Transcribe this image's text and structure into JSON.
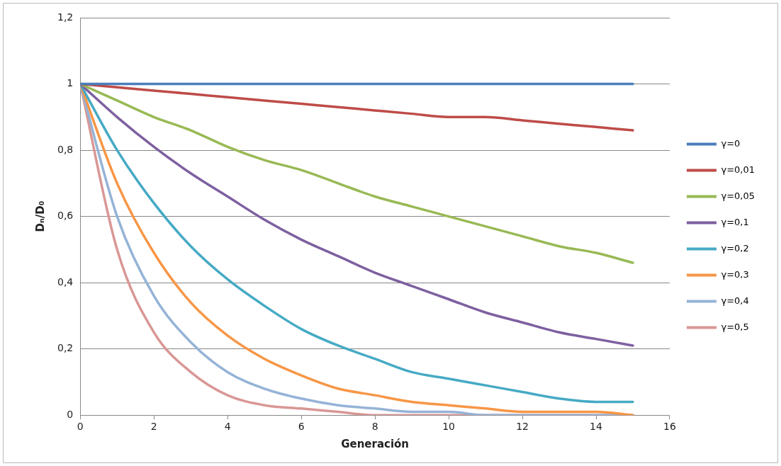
{
  "chart_data": {
    "type": "line",
    "xlabel": "Generación",
    "ylabel": "Dₙ/D₀",
    "x": [
      0,
      1,
      2,
      3,
      4,
      5,
      6,
      7,
      8,
      9,
      10,
      11,
      12,
      13,
      14,
      15
    ],
    "xlim": [
      0,
      16
    ],
    "xticks": [
      0,
      2,
      4,
      6,
      8,
      10,
      12,
      14,
      16
    ],
    "ylim": [
      0,
      1.2
    ],
    "yticks": [
      0,
      {
        "value": 0.2,
        "label": "0,2"
      },
      {
        "value": 0.4,
        "label": "0,4"
      },
      {
        "value": 0.6,
        "label": "0,6"
      },
      {
        "value": 0.8,
        "label": "0,8"
      },
      1,
      {
        "value": 1.2,
        "label": "1,2"
      }
    ],
    "grid": "y",
    "legend": "right",
    "marker": "none",
    "line_style": "solid",
    "series": [
      {
        "name": "γ=0",
        "color": "#4a7ebb",
        "values": [
          1,
          1,
          1,
          1,
          1,
          1,
          1,
          1,
          1,
          1,
          1,
          1,
          1,
          1,
          1,
          1
        ]
      },
      {
        "name": "γ=0,01",
        "color": "#be4b48",
        "values": [
          1,
          0.99,
          0.98,
          0.97,
          0.96,
          0.95,
          0.94,
          0.93,
          0.92,
          0.91,
          0.9,
          0.9,
          0.89,
          0.88,
          0.87,
          0.86
        ]
      },
      {
        "name": "γ=0,05",
        "color": "#98b954",
        "values": [
          1,
          0.95,
          0.9,
          0.86,
          0.81,
          0.77,
          0.74,
          0.7,
          0.66,
          0.63,
          0.6,
          0.57,
          0.54,
          0.51,
          0.49,
          0.46
        ]
      },
      {
        "name": "γ=0,1",
        "color": "#7d60a0",
        "values": [
          1,
          0.9,
          0.81,
          0.73,
          0.66,
          0.59,
          0.53,
          0.48,
          0.43,
          0.39,
          0.35,
          0.31,
          0.28,
          0.25,
          0.23,
          0.21
        ]
      },
      {
        "name": "γ=0,2",
        "color": "#46aac5",
        "values": [
          1,
          0.8,
          0.64,
          0.51,
          0.41,
          0.33,
          0.26,
          0.21,
          0.17,
          0.13,
          0.11,
          0.09,
          0.07,
          0.05,
          0.04,
          0.04
        ]
      },
      {
        "name": "γ=0,3",
        "color": "#f79646",
        "values": [
          1,
          0.7,
          0.49,
          0.34,
          0.24,
          0.17,
          0.12,
          0.08,
          0.06,
          0.04,
          0.03,
          0.02,
          0.01,
          0.01,
          0.01,
          0
        ]
      },
      {
        "name": "γ=0,4",
        "color": "#95b3d7",
        "values": [
          1,
          0.6,
          0.36,
          0.22,
          0.13,
          0.08,
          0.05,
          0.03,
          0.02,
          0.01,
          0.01,
          0,
          0,
          0,
          0,
          0
        ]
      },
      {
        "name": "γ=0,5",
        "color": "#d99795",
        "values": [
          1,
          0.5,
          0.25,
          0.13,
          0.06,
          0.03,
          0.02,
          0.01,
          0,
          0,
          0,
          0,
          0,
          0,
          0,
          0
        ]
      }
    ]
  }
}
